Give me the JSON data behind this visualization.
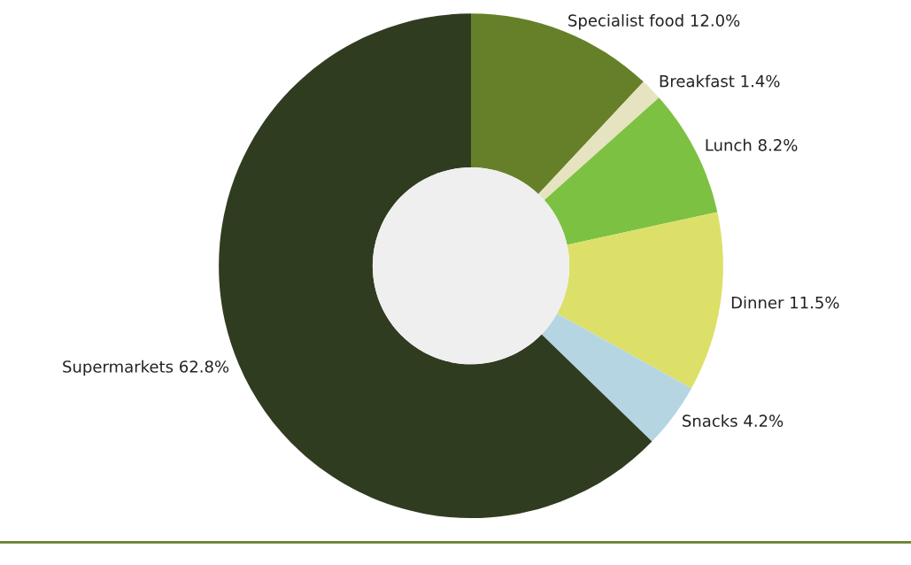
{
  "chart_data": {
    "type": "donut",
    "categories": [
      "Specialist food",
      "Breakfast",
      "Lunch",
      "Dinner",
      "Snacks",
      "Supermarkets"
    ],
    "values": [
      12.0,
      1.4,
      8.2,
      11.5,
      4.2,
      62.8
    ],
    "value_labels": [
      "12.0%",
      "1.4%",
      "8.2%",
      "11.5%",
      "4.2%",
      "62.8%"
    ],
    "colors": [
      "#66802a",
      "#e6e3c0",
      "#7dc142",
      "#dce068",
      "#b5d5e3",
      "#2f3c20"
    ],
    "legend": false
  }
}
